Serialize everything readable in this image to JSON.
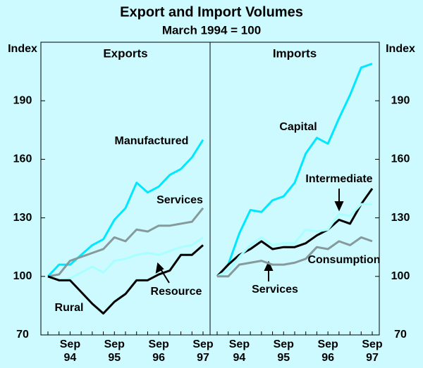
{
  "title": "Export and Import Volumes",
  "subtitle": "March 1994 = 100",
  "chart_data": [
    {
      "type": "line",
      "panel_title": "Exports",
      "y_label": "Index",
      "y_axis_side": "left",
      "categories": [
        null,
        null,
        "Sep 94",
        null,
        null,
        null,
        "Sep 95",
        null,
        null,
        null,
        "Sep 96",
        null,
        null,
        null,
        "Sep 97"
      ],
      "ylim": [
        70,
        220
      ],
      "yticks": [
        70,
        100,
        130,
        160,
        190
      ],
      "grid": false,
      "series": [
        {
          "name": "Manufactured",
          "color": "#00e8ff",
          "values": [
            100,
            106,
            106,
            111,
            116,
            119,
            129,
            135,
            148,
            143,
            146,
            152,
            155,
            161,
            170
          ]
        },
        {
          "name": "Services",
          "color": "#869a9c",
          "values": [
            100,
            101,
            108,
            110,
            112,
            114,
            120,
            118,
            124,
            123,
            126,
            126,
            127,
            128,
            135
          ]
        },
        {
          "name": "Resource",
          "color": "#a8ffff",
          "values": [
            100,
            98,
            99,
            102,
            105,
            102,
            108,
            109,
            111,
            112,
            111,
            113,
            115,
            116,
            120
          ]
        },
        {
          "name": "Rural",
          "color": "#000000",
          "values": [
            100,
            98,
            98,
            92,
            86,
            81,
            87,
            91,
            98,
            98,
            101,
            103,
            111,
            111,
            116
          ]
        }
      ]
    },
    {
      "type": "line",
      "panel_title": "Imports",
      "y_label": "Index",
      "y_axis_side": "right",
      "categories": [
        null,
        null,
        "Sep 94",
        null,
        null,
        null,
        "Sep 95",
        null,
        null,
        null,
        "Sep 96",
        null,
        null,
        null,
        "Sep 97"
      ],
      "ylim": [
        70,
        220
      ],
      "yticks": [
        70,
        100,
        130,
        160,
        190
      ],
      "grid": false,
      "series": [
        {
          "name": "Capital",
          "color": "#00e8ff",
          "values": [
            100,
            106,
            122,
            134,
            133,
            139,
            141,
            148,
            163,
            171,
            168,
            181,
            193,
            207,
            209
          ]
        },
        {
          "name": "Intermediate",
          "color": "#000000",
          "values": [
            100,
            106,
            111,
            114,
            118,
            114,
            115,
            115,
            117,
            121,
            124,
            129,
            127,
            137,
            145
          ]
        },
        {
          "name": "Consumption",
          "color": "#a8ffff",
          "values": [
            100,
            103,
            110,
            116,
            120,
            116,
            117,
            117,
            124,
            123,
            124,
            132,
            131,
            137,
            137
          ]
        },
        {
          "name": "Services",
          "color": "#869a9c",
          "values": [
            100,
            100,
            106,
            107,
            108,
            106,
            106,
            107,
            109,
            115,
            114,
            118,
            116,
            120,
            118
          ]
        }
      ]
    }
  ]
}
